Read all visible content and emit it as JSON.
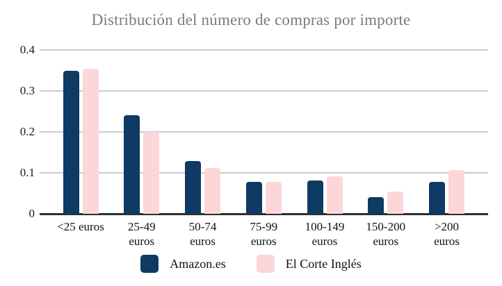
{
  "chart_data": {
    "type": "bar",
    "title": "Distribución del número de compras por importe",
    "categories": [
      "<25 euros",
      "25-49 euros",
      "50-74 euros",
      "75-99 euros",
      "100-149 euros",
      "150-200 euros",
      ">200 euros"
    ],
    "category_lines": [
      [
        "<25 euros"
      ],
      [
        "25-49",
        "euros"
      ],
      [
        "50-74",
        "euros"
      ],
      [
        "75-99",
        "euros"
      ],
      [
        "100-149",
        "euros"
      ],
      [
        "150-200",
        "euros"
      ],
      [
        ">200",
        "euros"
      ]
    ],
    "series": [
      {
        "name": "Amazon.es",
        "color": "#0e3a63",
        "values": [
          0.35,
          0.24,
          0.128,
          0.078,
          0.081,
          0.04,
          0.078
        ]
      },
      {
        "name": "El Corte Inglés",
        "color": "#fcd7da",
        "values": [
          0.355,
          0.2,
          0.112,
          0.078,
          0.091,
          0.054,
          0.107
        ]
      }
    ],
    "xlabel": "",
    "ylabel": "",
    "ylim": [
      0,
      0.4
    ],
    "yticks": [
      0,
      0.1,
      0.2,
      0.3,
      0.4
    ],
    "ytick_labels": [
      "0",
      "0.1",
      "0.2",
      "0.3",
      "0.4"
    ],
    "grid": true,
    "legend_position": "bottom"
  },
  "colors": {
    "background": "#ffffff",
    "title_text": "#7b7b7b",
    "gridline": "#cccccc",
    "baseline": "#2d2d2d",
    "tick_text": "#1a1a1a",
    "series_amazon": "#0e3a63",
    "series_corte_ingles": "#fcd7da"
  }
}
